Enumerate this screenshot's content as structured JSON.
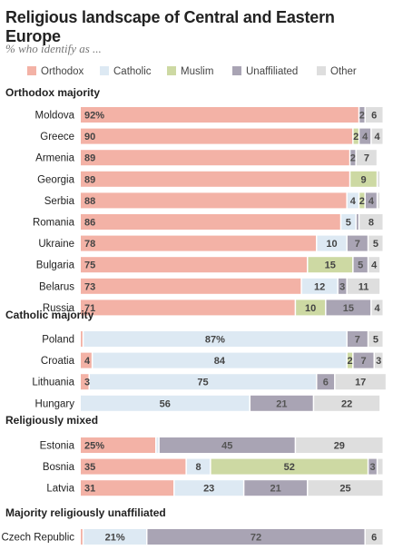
{
  "title": "Religious landscape of Central and Eastern Europe",
  "subtitle": "% who identify as ...",
  "colors": {
    "Orthodox": "#f3b2a6",
    "Catholic": "#dde9f3",
    "Muslim": "#cdd9a3",
    "Unaffiliated": "#a9a4b4",
    "Other": "#dedede"
  },
  "chart_data": {
    "type": "bar",
    "orientation": "horizontal-stacked",
    "categories_order": [
      "Orthodox",
      "Catholic",
      "Muslim",
      "Unaffiliated",
      "Other"
    ],
    "legend": [
      "Orthodox",
      "Catholic",
      "Muslim",
      "Unaffiliated",
      "Other"
    ],
    "groups": [
      {
        "title": "Orthodox majority",
        "rows": [
          {
            "country": "Moldova",
            "values": [
              92,
              0,
              0,
              2,
              6
            ],
            "labels": [
              "92%",
              "",
              "",
              "2",
              "6"
            ]
          },
          {
            "country": "Greece",
            "values": [
              90,
              0,
              2,
              4,
              4
            ],
            "labels": [
              "90",
              "",
              "2",
              "4",
              "4"
            ]
          },
          {
            "country": "Armenia",
            "values": [
              89,
              0,
              0,
              2,
              7
            ],
            "labels": [
              "89",
              "",
              "",
              "2",
              "7"
            ]
          },
          {
            "country": "Georgia",
            "values": [
              89,
              0,
              9,
              0,
              1
            ],
            "labels": [
              "89",
              "",
              "9",
              "",
              ""
            ]
          },
          {
            "country": "Serbia",
            "values": [
              88,
              4,
              2,
              4,
              1
            ],
            "labels": [
              "88",
              "4",
              "2",
              "4",
              ""
            ]
          },
          {
            "country": "Romania",
            "values": [
              86,
              5,
              0,
              1,
              8
            ],
            "labels": [
              "86",
              "5",
              "",
              "",
              "8"
            ]
          },
          {
            "country": "Ukraine",
            "values": [
              78,
              10,
              0,
              7,
              5
            ],
            "labels": [
              "78",
              "10",
              "",
              "7",
              "5"
            ]
          },
          {
            "country": "Bulgaria",
            "values": [
              75,
              0,
              15,
              5,
              4
            ],
            "labels": [
              "75",
              "",
              "15",
              "5",
              "4"
            ]
          },
          {
            "country": "Belarus",
            "values": [
              73,
              12,
              0,
              3,
              11
            ],
            "labels": [
              "73",
              "12",
              "",
              "3",
              "11"
            ]
          },
          {
            "country": "Russia",
            "values": [
              71,
              0,
              10,
              15,
              4
            ],
            "labels": [
              "71",
              "",
              "10",
              "15",
              "4"
            ]
          }
        ]
      },
      {
        "title": "Catholic majority",
        "rows": [
          {
            "country": "Poland",
            "values": [
              1,
              87,
              0,
              7,
              5
            ],
            "labels": [
              "",
              "87%",
              "",
              "7",
              "5"
            ]
          },
          {
            "country": "Croatia",
            "values": [
              4,
              84,
              2,
              7,
              3
            ],
            "labels": [
              "4",
              "84",
              "2",
              "7",
              "3"
            ]
          },
          {
            "country": "Lithuania",
            "values": [
              3,
              75,
              0,
              6,
              17
            ],
            "labels": [
              "3",
              "75",
              "",
              "6",
              "17"
            ]
          },
          {
            "country": "Hungary",
            "values": [
              0,
              56,
              0,
              21,
              22
            ],
            "labels": [
              "",
              "56",
              "",
              "21",
              "22"
            ]
          }
        ]
      },
      {
        "title": "Religiously mixed",
        "rows": [
          {
            "country": "Estonia",
            "values": [
              25,
              1,
              0,
              45,
              29
            ],
            "labels": [
              "25%",
              "",
              "",
              "45",
              "29"
            ]
          },
          {
            "country": "Bosnia",
            "values": [
              35,
              8,
              52,
              3,
              2
            ],
            "labels": [
              "35",
              "8",
              "52",
              "3",
              ""
            ]
          },
          {
            "country": "Latvia",
            "values": [
              31,
              23,
              0,
              21,
              25
            ],
            "labels": [
              "31",
              "23",
              "",
              "21",
              "25"
            ]
          }
        ]
      },
      {
        "title": "Majority religiously unaffiliated",
        "rows": [
          {
            "country": "Czech Republic",
            "values": [
              1,
              21,
              0,
              72,
              6
            ],
            "labels": [
              "",
              "21%",
              "",
              "72",
              "6"
            ]
          }
        ]
      }
    ]
  }
}
